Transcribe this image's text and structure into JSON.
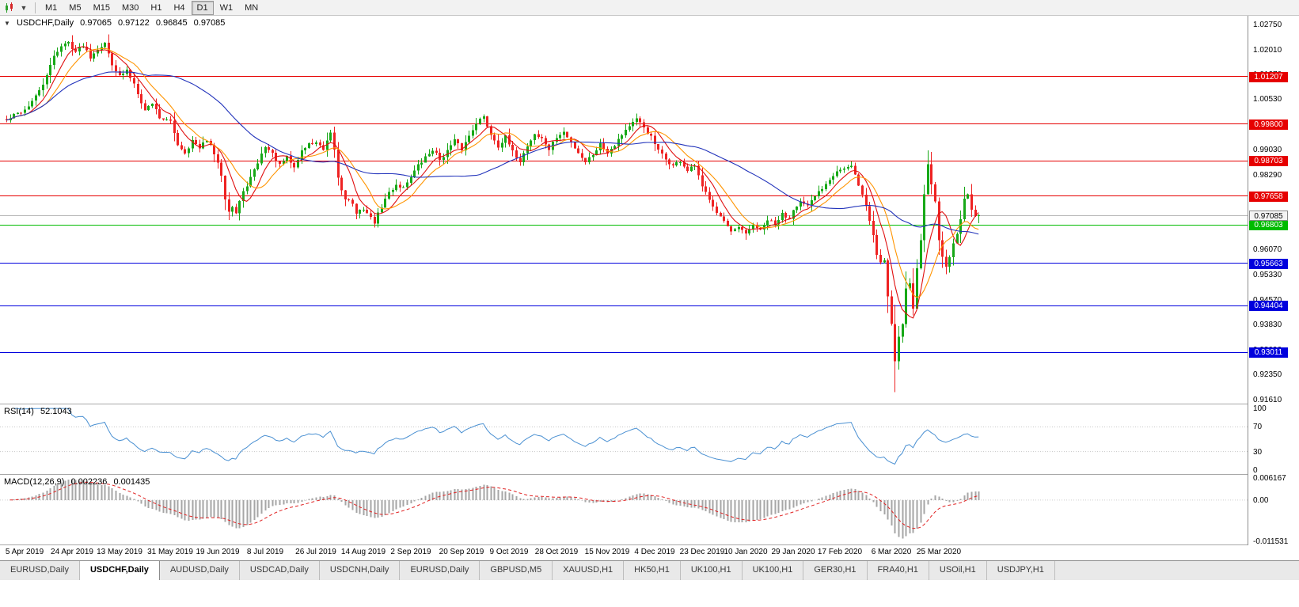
{
  "toolbar": {
    "timeframes": [
      "M1",
      "M5",
      "M15",
      "M30",
      "H1",
      "H4",
      "D1",
      "W1",
      "MN"
    ],
    "active_timeframe": "D1"
  },
  "header": {
    "symbol": "USDCHF,Daily",
    "open": "0.97065",
    "high": "0.97122",
    "low": "0.96845",
    "close": "0.97085"
  },
  "main_chart": {
    "y_ticks": [
      {
        "label": "1.02750",
        "value": 1.0275
      },
      {
        "label": "1.02010",
        "value": 1.0201
      },
      {
        "label": "1.01270",
        "value": 1.0127
      },
      {
        "label": "1.00530",
        "value": 1.0053
      },
      {
        "label": "0.99790",
        "value": 0.9979
      },
      {
        "label": "0.99030",
        "value": 0.9903
      },
      {
        "label": "0.98290",
        "value": 0.9829
      },
      {
        "label": "0.97550",
        "value": 0.9755
      },
      {
        "label": "0.96810",
        "value": 0.9681
      },
      {
        "label": "0.96070",
        "value": 0.9607
      },
      {
        "label": "0.95330",
        "value": 0.9533
      },
      {
        "label": "0.94570",
        "value": 0.9457
      },
      {
        "label": "0.93830",
        "value": 0.9383
      },
      {
        "label": "0.93090",
        "value": 0.9309
      },
      {
        "label": "0.92350",
        "value": 0.9235
      },
      {
        "label": "0.91610",
        "value": 0.9161
      }
    ],
    "hlines": [
      {
        "label": "1.01207",
        "value": 1.01207,
        "color": "#e60000"
      },
      {
        "label": "0.99800",
        "value": 0.998,
        "color": "#e60000"
      },
      {
        "label": "0.98703",
        "value": 0.98703,
        "color": "#e60000"
      },
      {
        "label": "0.97658",
        "value": 0.97658,
        "color": "#e60000"
      },
      {
        "label": "0.96803",
        "value": 0.96803,
        "color": "#00bb00"
      },
      {
        "label": "0.95663",
        "value": 0.95663,
        "color": "#0000dd"
      },
      {
        "label": "0.94404",
        "value": 0.94404,
        "color": "#0000dd"
      },
      {
        "label": "0.93011",
        "value": 0.93011,
        "color": "#0000dd"
      }
    ],
    "bid": {
      "label": "0.97085",
      "value": 0.97085,
      "color": "#b8b8b8"
    },
    "x_labels": [
      {
        "label": "5 Apr 2019",
        "index": 5
      },
      {
        "label": "24 Apr 2019",
        "index": 18
      },
      {
        "label": "13 May 2019",
        "index": 31
      },
      {
        "label": "31 May 2019",
        "index": 45
      },
      {
        "label": "19 Jun 2019",
        "index": 58
      },
      {
        "label": "8 Jul 2019",
        "index": 71
      },
      {
        "label": "26 Jul 2019",
        "index": 85
      },
      {
        "label": "14 Aug 2019",
        "index": 98
      },
      {
        "label": "2 Sep 2019",
        "index": 111
      },
      {
        "label": "20 Sep 2019",
        "index": 125
      },
      {
        "label": "9 Oct 2019",
        "index": 138
      },
      {
        "label": "28 Oct 2019",
        "index": 151
      },
      {
        "label": "15 Nov 2019",
        "index": 165
      },
      {
        "label": "4 Dec 2019",
        "index": 178
      },
      {
        "label": "23 Dec 2019",
        "index": 191
      },
      {
        "label": "10 Jan 2020",
        "index": 203
      },
      {
        "label": "29 Jan 2020",
        "index": 216
      },
      {
        "label": "17 Feb 2020",
        "index": 229
      },
      {
        "label": "6 Mar 2020",
        "index": 243
      },
      {
        "label": "25 Mar 2020",
        "index": 256
      }
    ]
  },
  "rsi_panel": {
    "label": "RSI(14)",
    "value": "52.1043",
    "axis_ticks": [
      {
        "label": "100",
        "value": 100
      },
      {
        "label": "70",
        "value": 70
      },
      {
        "label": "30",
        "value": 30
      },
      {
        "label": "0",
        "value": 0
      }
    ],
    "levels": [
      70,
      30
    ],
    "line_color": "#4a90d2"
  },
  "macd_panel": {
    "label": "MACD(12,26,9)",
    "value_main": "0.002236",
    "value_signal": "0.001435",
    "axis_ticks": [
      {
        "label": "0.006167",
        "value": 0.006167
      },
      {
        "label": "0.00",
        "value": 0
      },
      {
        "label": "-0.011531",
        "value": -0.011531
      }
    ],
    "max": 0.006167,
    "min": -0.011531,
    "histogram_color": "#a6a6a6",
    "signal_color": "#e02020"
  },
  "tabbar": {
    "tabs": [
      "EURUSD,Daily",
      "USDCHF,Daily",
      "AUDUSD,Daily",
      "USDCAD,Daily",
      "USDCNH,Daily",
      "EURUSD,Daily",
      "GBPUSD,M5",
      "XAUUSD,H1",
      "HK50,H1",
      "UK100,H1",
      "UK100,H1",
      "GER30,H1",
      "FRA40,H1",
      "USOil,H1",
      "USDJPY,H1"
    ],
    "active_index": 1
  },
  "colors": {
    "bull": "#17a817",
    "bear": "#ee2222",
    "background": "#ffffff",
    "axis_text": "#000000"
  },
  "chart_data": {
    "type": "candlestick",
    "symbol": "USDCHF",
    "timeframe": "Daily",
    "candle_count": 268,
    "price_range": [
      0.9149,
      1.0301
    ],
    "close_anchors": [
      [
        0,
        0.999
      ],
      [
        2,
        1.0005
      ],
      [
        5,
        1.0022
      ],
      [
        8,
        1.006
      ],
      [
        11,
        1.012
      ],
      [
        13,
        1.0185
      ],
      [
        15,
        1.021
      ],
      [
        17,
        1.0222
      ],
      [
        19,
        1.0195
      ],
      [
        21,
        1.0215
      ],
      [
        23,
        1.018
      ],
      [
        25,
        1.0205
      ],
      [
        27,
        1.0218
      ],
      [
        29,
        1.016
      ],
      [
        31,
        1.012
      ],
      [
        33,
        1.0138
      ],
      [
        35,
        1.01
      ],
      [
        38,
        1.002
      ],
      [
        40,
        1.0043
      ],
      [
        42,
        1.0
      ],
      [
        45,
        0.9985
      ],
      [
        47,
        0.992
      ],
      [
        49,
        0.9895
      ],
      [
        51,
        0.993
      ],
      [
        53,
        0.9905
      ],
      [
        55,
        0.9935
      ],
      [
        57,
        0.989
      ],
      [
        59,
        0.983
      ],
      [
        60,
        0.976
      ],
      [
        61,
        0.9725
      ],
      [
        62,
        0.9735
      ],
      [
        63,
        0.9715
      ],
      [
        64,
        0.975
      ],
      [
        66,
        0.98
      ],
      [
        68,
        0.984
      ],
      [
        70,
        0.989
      ],
      [
        71,
        0.9915
      ],
      [
        73,
        0.989
      ],
      [
        75,
        0.9855
      ],
      [
        77,
        0.988
      ],
      [
        79,
        0.985
      ],
      [
        81,
        0.99
      ],
      [
        83,
        0.992
      ],
      [
        85,
        0.9925
      ],
      [
        87,
        0.99
      ],
      [
        89,
        0.995
      ],
      [
        90,
        0.9905
      ],
      [
        91,
        0.982
      ],
      [
        92,
        0.9785
      ],
      [
        93,
        0.976
      ],
      [
        95,
        0.9745
      ],
      [
        96,
        0.971
      ],
      [
        98,
        0.973
      ],
      [
        100,
        0.97
      ],
      [
        101,
        0.9688
      ],
      [
        103,
        0.9735
      ],
      [
        105,
        0.9775
      ],
      [
        107,
        0.98
      ],
      [
        109,
        0.979
      ],
      [
        111,
        0.9825
      ],
      [
        113,
        0.9855
      ],
      [
        115,
        0.988
      ],
      [
        117,
        0.9905
      ],
      [
        119,
        0.9875
      ],
      [
        121,
        0.99
      ],
      [
        123,
        0.993
      ],
      [
        125,
        0.9905
      ],
      [
        127,
        0.9945
      ],
      [
        129,
        0.9985
      ],
      [
        131,
        1.0
      ],
      [
        133,
        0.995
      ],
      [
        135,
        0.9915
      ],
      [
        137,
        0.994
      ],
      [
        139,
        0.9895
      ],
      [
        141,
        0.987
      ],
      [
        143,
        0.9915
      ],
      [
        145,
        0.995
      ],
      [
        147,
        0.9935
      ],
      [
        149,
        0.9905
      ],
      [
        151,
        0.994
      ],
      [
        153,
        0.9955
      ],
      [
        155,
        0.9925
      ],
      [
        157,
        0.9895
      ],
      [
        159,
        0.9868
      ],
      [
        161,
        0.989
      ],
      [
        163,
        0.992
      ],
      [
        165,
        0.9897
      ],
      [
        167,
        0.992
      ],
      [
        169,
        0.995
      ],
      [
        171,
        0.9975
      ],
      [
        173,
        0.9992
      ],
      [
        175,
        0.997
      ],
      [
        177,
        0.994
      ],
      [
        179,
        0.99
      ],
      [
        181,
        0.9875
      ],
      [
        183,
        0.9855
      ],
      [
        185,
        0.987
      ],
      [
        187,
        0.984
      ],
      [
        189,
        0.9855
      ],
      [
        191,
        0.979
      ],
      [
        193,
        0.976
      ],
      [
        195,
        0.972
      ],
      [
        197,
        0.969
      ],
      [
        199,
        0.9655
      ],
      [
        201,
        0.9672
      ],
      [
        203,
        0.965
      ],
      [
        205,
        0.9682
      ],
      [
        207,
        0.9662
      ],
      [
        209,
        0.9695
      ],
      [
        211,
        0.968
      ],
      [
        213,
        0.9712
      ],
      [
        215,
        0.97
      ],
      [
        216,
        0.973
      ],
      [
        218,
        0.9748
      ],
      [
        220,
        0.9732
      ],
      [
        222,
        0.9765
      ],
      [
        224,
        0.979
      ],
      [
        226,
        0.9818
      ],
      [
        228,
        0.9842
      ],
      [
        230,
        0.9846
      ],
      [
        232,
        0.9852
      ],
      [
        234,
        0.98
      ],
      [
        236,
        0.9735
      ],
      [
        238,
        0.965
      ],
      [
        239,
        0.9592
      ],
      [
        240,
        0.957
      ],
      [
        241,
        0.9576
      ],
      [
        242,
        0.947
      ],
      [
        243,
        0.939
      ],
      [
        244,
        0.9275
      ],
      [
        245,
        0.935
      ],
      [
        246,
        0.9385
      ],
      [
        247,
        0.949
      ],
      [
        248,
        0.9505
      ],
      [
        249,
        0.9432
      ],
      [
        250,
        0.9555
      ],
      [
        251,
        0.964
      ],
      [
        252,
        0.9775
      ],
      [
        253,
        0.9855
      ],
      [
        254,
        0.9805
      ],
      [
        255,
        0.9745
      ],
      [
        256,
        0.9635
      ],
      [
        257,
        0.9585
      ],
      [
        258,
        0.956
      ],
      [
        259,
        0.958
      ],
      [
        260,
        0.963
      ],
      [
        261,
        0.9655
      ],
      [
        262,
        0.97
      ],
      [
        263,
        0.9755
      ],
      [
        264,
        0.977
      ],
      [
        265,
        0.973
      ],
      [
        266,
        0.97
      ],
      [
        267,
        0.9709
      ]
    ],
    "overrides": {
      "17": {
        "high": 1.0226
      },
      "61": {
        "low": 0.9695
      },
      "101": {
        "low": 0.9672
      },
      "203": {
        "low": 0.9636
      },
      "244": {
        "low": 0.9183
      },
      "253": {
        "high": 0.9901
      },
      "267": {
        "open": 0.97065,
        "high": 0.97122,
        "low": 0.96845,
        "close": 0.97085
      }
    },
    "moving_averages": [
      {
        "period": 7,
        "color": "#e01010"
      },
      {
        "period": 12,
        "color": "#ff9400"
      },
      {
        "period": 40,
        "color": "#2233bb"
      }
    ],
    "indicators": {
      "rsi_period": 14,
      "macd": [
        12,
        26,
        9
      ]
    },
    "seed": 42,
    "noise": 0.0006,
    "layout": {
      "x0": 8,
      "dx": 4.6,
      "body_width": 3
    }
  }
}
